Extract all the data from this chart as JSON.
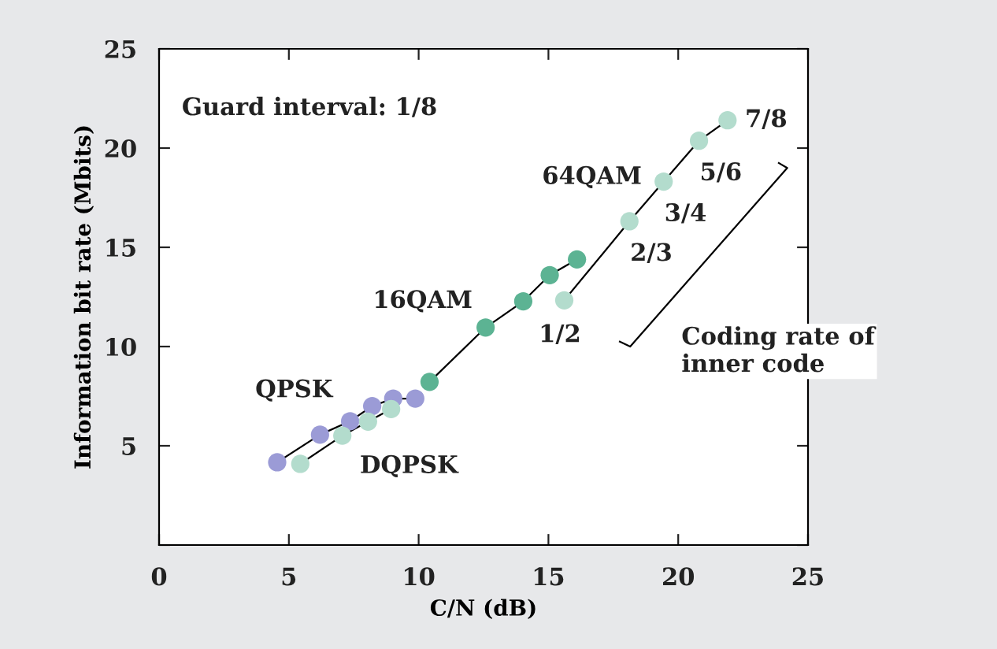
{
  "chart_data": {
    "type": "line",
    "xlabel": "C/N (dB)",
    "ylabel": "Information bit rate (Mbits)",
    "xlim": [
      0,
      25
    ],
    "ylim": [
      0,
      25
    ],
    "xticks": [
      0,
      5,
      10,
      15,
      20,
      25
    ],
    "yticks": [
      {
        "value": 0,
        "label": null
      },
      5,
      10,
      15,
      20,
      25
    ],
    "grid": false,
    "marker": "circle",
    "line_style": "solid",
    "series": [
      {
        "name": "QPSK",
        "color": "#9b9bd6",
        "x": [
          4.55,
          6.2,
          7.36,
          8.21,
          9.02,
          9.87
        ],
        "values": [
          4.17,
          5.56,
          6.24,
          7.0,
          7.38,
          7.38
        ]
      },
      {
        "name": "DQPSK",
        "color": "#b3dccd",
        "x": [
          5.44,
          7.06,
          8.05,
          8.94
        ],
        "values": [
          4.09,
          5.51,
          6.22,
          6.85
        ]
      },
      {
        "name": "16QAM",
        "color": "#5cb393",
        "x": [
          10.42,
          12.58,
          14.03,
          15.05,
          16.1
        ],
        "values": [
          8.22,
          10.96,
          12.28,
          13.6,
          14.39
        ]
      },
      {
        "name": "64QAM",
        "color": "#b3dccd",
        "x": [
          15.61,
          18.12,
          19.44,
          20.8,
          21.9
        ],
        "values": [
          12.33,
          16.31,
          18.31,
          20.37,
          21.4
        ]
      }
    ],
    "annotations": [
      "Guard interval: 1/8",
      {
        "text": "1/2",
        "x": 15.61,
        "y": 12.33
      },
      {
        "text": "2/3",
        "x": 18.12,
        "y": 16.31
      },
      {
        "text": "3/4",
        "x": 19.44,
        "y": 18.31
      },
      {
        "text": "5/6",
        "x": 20.8,
        "y": 20.37
      },
      {
        "text": "7/8",
        "x": 21.9,
        "y": 21.4
      },
      "Coding rate of\ninner code"
    ]
  }
}
